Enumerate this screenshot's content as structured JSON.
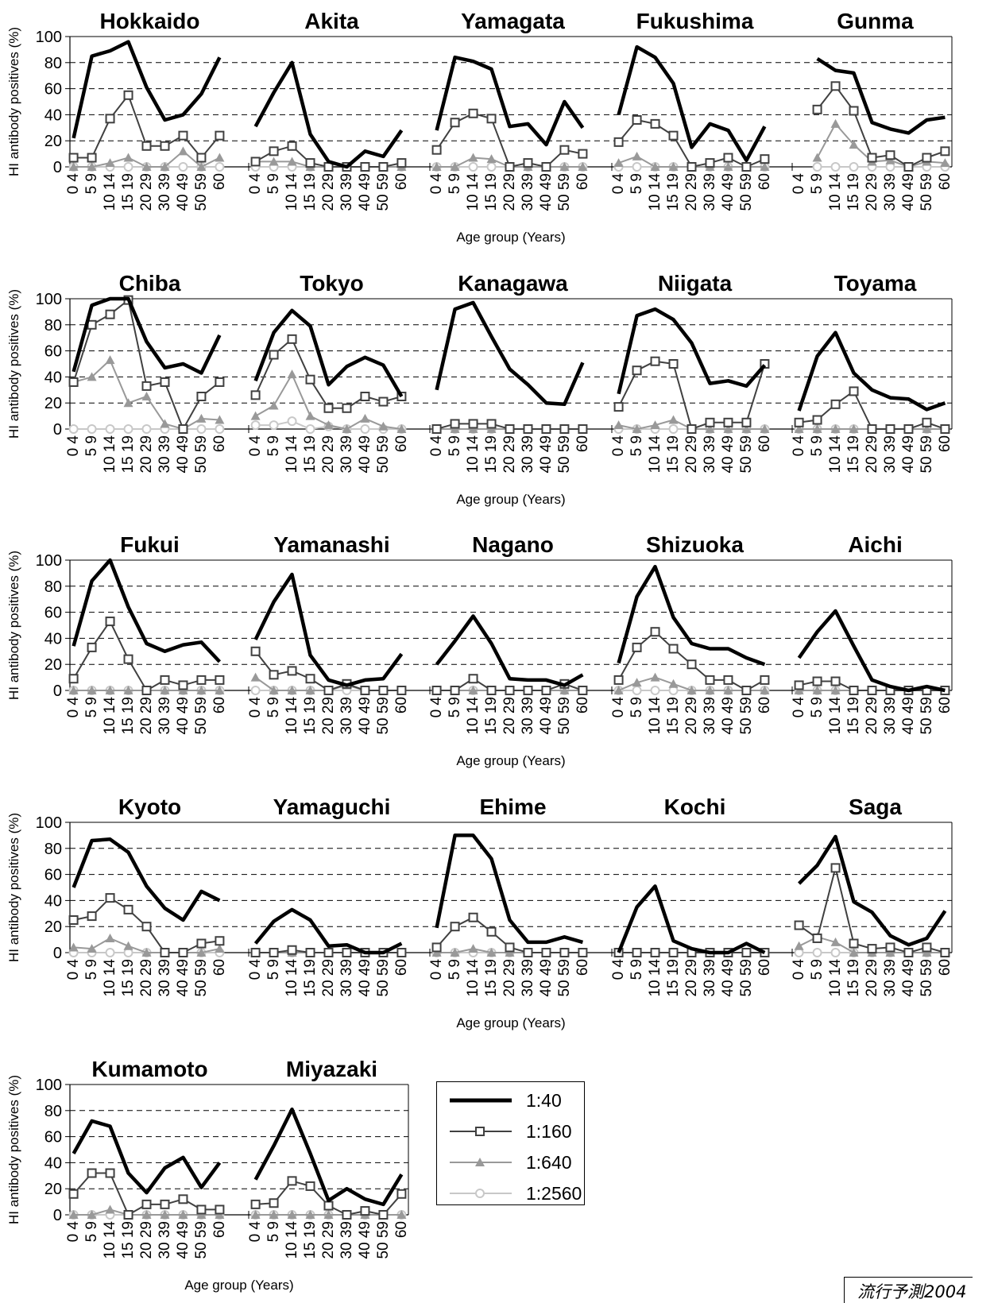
{
  "chart_data": {
    "type": "line",
    "ylabel": "HI antibody positives (%)",
    "xlabel": "Age group (Years)",
    "ylim": [
      0,
      100
    ],
    "yticks": [
      0,
      20,
      40,
      60,
      80,
      100
    ],
    "grid": "horizontal dashed",
    "legend_placement": "bottom-center",
    "age_groups": [
      [
        "0",
        "4"
      ],
      [
        "5",
        "9"
      ],
      [
        "10",
        "14"
      ],
      [
        "15",
        "19"
      ],
      [
        "20",
        "29"
      ],
      [
        "30",
        "39"
      ],
      [
        "40",
        "49"
      ],
      [
        "50",
        "59"
      ],
      [
        "60",
        ""
      ]
    ],
    "series_styles": [
      {
        "name": "1:40",
        "color": "#000000",
        "marker": "none",
        "width": 4.5
      },
      {
        "name": "1:160",
        "color": "#404040",
        "marker": "square",
        "width": 2
      },
      {
        "name": "1:640",
        "color": "#999999",
        "marker": "triangle",
        "width": 2
      },
      {
        "name": "1:2560",
        "color": "#c8c8c8",
        "marker": "circle",
        "width": 2
      }
    ],
    "panels": [
      {
        "title": "Hokkaido",
        "series": [
          [
            22,
            85,
            89,
            96,
            61,
            36,
            40,
            56,
            84
          ],
          [
            7,
            7,
            37,
            55,
            16,
            16,
            24,
            7,
            24
          ],
          [
            0,
            0,
            3,
            7,
            0,
            0,
            12,
            0,
            7
          ],
          [
            0,
            0,
            0,
            0,
            0,
            0,
            0,
            0,
            0
          ]
        ]
      },
      {
        "title": "Akita",
        "series": [
          [
            31,
            57,
            80,
            25,
            4,
            0,
            12,
            8,
            28
          ],
          [
            4,
            12,
            16,
            3,
            0,
            0,
            0,
            0,
            3
          ],
          [
            4,
            4,
            4,
            0,
            0,
            0,
            0,
            0,
            0
          ],
          [
            0,
            0,
            0,
            0,
            0,
            0,
            0,
            0,
            0
          ]
        ]
      },
      {
        "title": "Yamagata",
        "series": [
          [
            28,
            84,
            81,
            75,
            31,
            33,
            17,
            50,
            30
          ],
          [
            13,
            34,
            41,
            37,
            0,
            3,
            0,
            13,
            10
          ],
          [
            0,
            0,
            7,
            6,
            0,
            0,
            0,
            0,
            0
          ],
          [
            0,
            0,
            0,
            0,
            0,
            0,
            0,
            0,
            0
          ]
        ]
      },
      {
        "title": "Fukushima",
        "series": [
          [
            40,
            92,
            84,
            64,
            15,
            33,
            28,
            5,
            31
          ],
          [
            19,
            36,
            33,
            24,
            0,
            3,
            7,
            0,
            6
          ],
          [
            3,
            8,
            0,
            0,
            0,
            0,
            0,
            0,
            0
          ],
          [
            0,
            0,
            0,
            0,
            0,
            0,
            0,
            0,
            0
          ]
        ]
      },
      {
        "title": "Gunma",
        "series": [
          [
            null,
            83,
            74,
            72,
            34,
            29,
            26,
            36,
            38
          ],
          [
            null,
            44,
            62,
            43,
            7,
            9,
            0,
            7,
            12
          ],
          [
            null,
            7,
            33,
            17,
            4,
            5,
            0,
            4,
            3
          ],
          [
            null,
            0,
            0,
            0,
            0,
            0,
            0,
            0,
            0
          ]
        ]
      },
      {
        "title": "Chiba",
        "series": [
          [
            44,
            95,
            100,
            100,
            67,
            47,
            50,
            43,
            72
          ],
          [
            36,
            80,
            88,
            99,
            33,
            36,
            0,
            25,
            36
          ],
          [
            36,
            40,
            53,
            20,
            25,
            4,
            0,
            8,
            7
          ],
          [
            0,
            0,
            0,
            0,
            0,
            0,
            0,
            0,
            0
          ]
        ]
      },
      {
        "title": "Tokyo",
        "series": [
          [
            37,
            74,
            91,
            79,
            34,
            48,
            55,
            49,
            25
          ],
          [
            26,
            57,
            69,
            38,
            16,
            16,
            25,
            21,
            25
          ],
          [
            10,
            18,
            42,
            10,
            3,
            0,
            8,
            2,
            0
          ],
          [
            3,
            3,
            6,
            0,
            2,
            0,
            0,
            0,
            0
          ]
        ]
      },
      {
        "title": "Kanagawa",
        "series": [
          [
            30,
            92,
            97,
            71,
            46,
            34,
            20,
            19,
            51
          ],
          [
            0,
            4,
            4,
            4,
            0,
            0,
            0,
            0,
            0
          ],
          [
            0,
            0,
            0,
            0,
            0,
            0,
            0,
            0,
            0
          ],
          [
            0,
            0,
            0,
            0,
            0,
            0,
            0,
            0,
            0
          ]
        ]
      },
      {
        "title": "Niigata",
        "series": [
          [
            27,
            87,
            92,
            84,
            66,
            35,
            37,
            33,
            49
          ],
          [
            17,
            45,
            52,
            50,
            0,
            5,
            5,
            5,
            50
          ],
          [
            3,
            0,
            3,
            7,
            0,
            0,
            0,
            0,
            0
          ],
          [
            0,
            0,
            0,
            0,
            0,
            0,
            0,
            0,
            0
          ]
        ]
      },
      {
        "title": "Toyama",
        "series": [
          [
            14,
            56,
            74,
            43,
            30,
            24,
            23,
            15,
            20
          ],
          [
            5,
            7,
            19,
            29,
            0,
            0,
            0,
            5,
            0
          ],
          [
            0,
            0,
            0,
            0,
            0,
            0,
            0,
            0,
            0
          ],
          [
            0,
            0,
            0,
            0,
            0,
            0,
            0,
            0,
            0
          ]
        ]
      },
      {
        "title": "Fukui",
        "series": [
          [
            34,
            84,
            100,
            64,
            36,
            30,
            35,
            37,
            22
          ],
          [
            9,
            33,
            53,
            24,
            0,
            8,
            4,
            8,
            8
          ],
          [
            0,
            0,
            0,
            0,
            0,
            0,
            0,
            0,
            0
          ],
          [
            0,
            0,
            0,
            0,
            0,
            0,
            0,
            0,
            0
          ]
        ]
      },
      {
        "title": "Yamanashi",
        "series": [
          [
            39,
            68,
            89,
            27,
            8,
            4,
            8,
            9,
            28
          ],
          [
            30,
            12,
            15,
            9,
            0,
            5,
            0,
            0,
            0
          ],
          [
            10,
            0,
            0,
            0,
            0,
            4,
            0,
            0,
            0
          ],
          [
            0,
            0,
            0,
            0,
            0,
            0,
            0,
            0,
            0
          ]
        ]
      },
      {
        "title": "Nagano",
        "series": [
          [
            20,
            38,
            57,
            36,
            9,
            8,
            8,
            4,
            12
          ],
          [
            0,
            0,
            9,
            0,
            0,
            0,
            0,
            5,
            0
          ],
          [
            0,
            0,
            0,
            0,
            0,
            0,
            0,
            0,
            0
          ],
          [
            0,
            0,
            0,
            0,
            0,
            0,
            0,
            0,
            0
          ]
        ]
      },
      {
        "title": "Shizuoka",
        "series": [
          [
            21,
            72,
            95,
            56,
            36,
            32,
            32,
            25,
            20
          ],
          [
            8,
            33,
            45,
            32,
            20,
            8,
            8,
            0,
            8
          ],
          [
            0,
            6,
            10,
            5,
            0,
            0,
            0,
            0,
            0
          ],
          [
            0,
            0,
            0,
            0,
            0,
            0,
            0,
            0,
            0
          ]
        ]
      },
      {
        "title": "Aichi",
        "series": [
          [
            25,
            45,
            61,
            34,
            8,
            3,
            0,
            3,
            0
          ],
          [
            4,
            7,
            7,
            0,
            0,
            0,
            0,
            0,
            0
          ],
          [
            0,
            0,
            0,
            0,
            0,
            0,
            0,
            0,
            0
          ],
          [
            0,
            0,
            0,
            0,
            0,
            0,
            0,
            0,
            0
          ]
        ]
      },
      {
        "title": "Kyoto",
        "series": [
          [
            50,
            86,
            87,
            77,
            51,
            34,
            25,
            47,
            40
          ],
          [
            25,
            28,
            42,
            33,
            20,
            0,
            0,
            7,
            9
          ],
          [
            4,
            3,
            11,
            5,
            0,
            0,
            0,
            0,
            3
          ],
          [
            0,
            0,
            0,
            0,
            0,
            0,
            0,
            0,
            0
          ]
        ]
      },
      {
        "title": "Yamaguchi",
        "series": [
          [
            7,
            24,
            33,
            25,
            5,
            6,
            0,
            0,
            7
          ],
          [
            0,
            0,
            2,
            0,
            0,
            0,
            0,
            0,
            0
          ],
          [
            0,
            0,
            0,
            0,
            0,
            0,
            0,
            0,
            0
          ],
          [
            0,
            0,
            0,
            0,
            0,
            0,
            0,
            0,
            0
          ]
        ]
      },
      {
        "title": "Ehime",
        "series": [
          [
            19,
            90,
            90,
            72,
            25,
            8,
            8,
            12,
            8
          ],
          [
            4,
            20,
            27,
            16,
            4,
            0,
            0,
            0,
            0
          ],
          [
            0,
            0,
            3,
            0,
            0,
            0,
            0,
            0,
            0
          ],
          [
            0,
            0,
            0,
            0,
            0,
            0,
            0,
            0,
            0
          ]
        ]
      },
      {
        "title": "Kochi",
        "series": [
          [
            0,
            35,
            51,
            9,
            3,
            0,
            0,
            7,
            0
          ],
          [
            0,
            0,
            0,
            0,
            0,
            0,
            0,
            0,
            0
          ],
          [
            0,
            0,
            0,
            0,
            0,
            0,
            0,
            0,
            0
          ],
          [
            0,
            0,
            0,
            0,
            0,
            0,
            0,
            0,
            0
          ]
        ]
      },
      {
        "title": "Saga",
        "series": [
          [
            53,
            67,
            89,
            39,
            31,
            13,
            6,
            11,
            32
          ],
          [
            21,
            11,
            65,
            7,
            3,
            4,
            0,
            4,
            0
          ],
          [
            5,
            12,
            8,
            0,
            0,
            0,
            0,
            0,
            0
          ],
          [
            0,
            0,
            0,
            0,
            0,
            0,
            0,
            0,
            0
          ]
        ]
      },
      {
        "title": "Kumamoto",
        "series": [
          [
            47,
            72,
            68,
            32,
            17,
            36,
            44,
            21,
            40
          ],
          [
            16,
            32,
            32,
            0,
            8,
            8,
            12,
            4,
            4
          ],
          [
            0,
            0,
            4,
            0,
            0,
            0,
            0,
            0,
            0
          ],
          [
            0,
            0,
            0,
            0,
            0,
            0,
            0,
            0,
            0
          ]
        ]
      },
      {
        "title": "Miyazaki",
        "series": [
          [
            27,
            53,
            81,
            47,
            11,
            20,
            12,
            8,
            31
          ],
          [
            8,
            9,
            26,
            22,
            7,
            0,
            3,
            0,
            16
          ],
          [
            0,
            0,
            0,
            0,
            0,
            0,
            0,
            0,
            0
          ],
          [
            0,
            0,
            0,
            0,
            0,
            0,
            0,
            0,
            0
          ]
        ]
      }
    ]
  },
  "legend": {
    "items": [
      {
        "label": "1:40"
      },
      {
        "label": "1:160"
      },
      {
        "label": "1:640"
      },
      {
        "label": "1:2560"
      }
    ]
  },
  "watermark": {
    "text": "流行予測2004"
  }
}
